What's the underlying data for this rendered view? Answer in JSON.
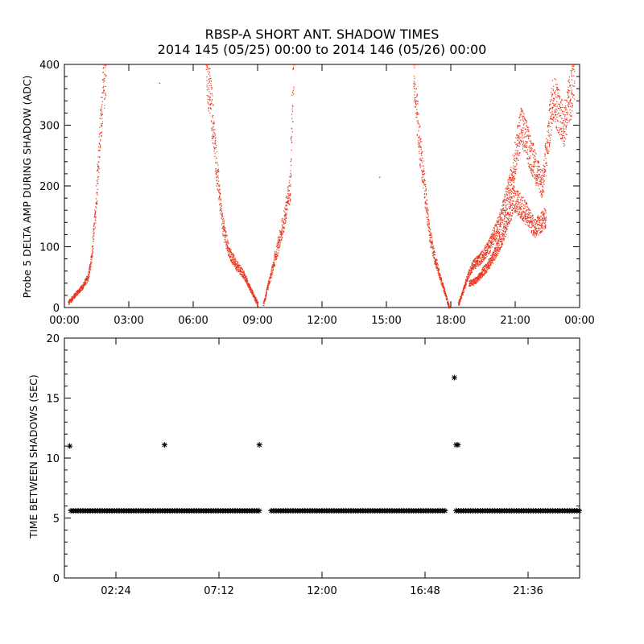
{
  "title_line1": "RBSP-A SHORT ANT. SHADOW TIMES",
  "title_line2": "2014 145 (05/25) 00:00 to 2014 146 (05/26) 00:00",
  "colors": {
    "points": "#e8341c",
    "markers": "#000000",
    "axes": "#000000"
  },
  "chart_data": [
    {
      "type": "scatter",
      "ylabel": "Probe 5 DELTA AMP DURING SHADOW (ADC)",
      "xlim": [
        "00:00",
        "24:00"
      ],
      "ylim": [
        0,
        400
      ],
      "xticks": [
        "00:00",
        "03:00",
        "06:00",
        "09:00",
        "12:00",
        "15:00",
        "18:00",
        "21:00",
        "00:00"
      ],
      "yticks": [
        "0",
        "100",
        "200",
        "300",
        "400"
      ],
      "series": [
        {
          "segments": [
            {
              "x": [
                "00:10",
                "00:30",
                "00:50",
                "01:05",
                "01:15",
                "01:25",
                "01:35",
                "01:45",
                "01:55"
              ],
              "y": [
                8,
                22,
                35,
                50,
                80,
                150,
                250,
                340,
                400
              ]
            },
            {
              "x": [
                "06:35",
                "06:50",
                "07:05",
                "07:20",
                "07:40",
                "08:00",
                "08:20",
                "08:40",
                "09:00"
              ],
              "y": [
                400,
                330,
                230,
                140,
                90,
                70,
                55,
                30,
                5
              ]
            },
            {
              "x": [
                "09:15",
                "09:30",
                "09:45",
                "10:00",
                "10:15",
                "10:30",
                "10:40"
              ],
              "y": [
                5,
                40,
                75,
                110,
                150,
                200,
                400
              ]
            },
            {
              "x": [
                "16:15",
                "16:30",
                "16:45",
                "17:00",
                "17:15",
                "17:30",
                "17:45",
                "17:55"
              ],
              "y": [
                400,
                280,
                200,
                120,
                80,
                50,
                20,
                0
              ]
            },
            {
              "x": [
                "18:20",
                "18:35",
                "18:45",
                "19:00",
                "19:20",
                "19:45",
                "20:15",
                "20:45",
                "21:15",
                "21:45",
                "22:15",
                "22:45",
                "23:15",
                "23:45"
              ],
              "y": [
                5,
                30,
                50,
                70,
                80,
                100,
                140,
                200,
                300,
                250,
                200,
                350,
                300,
                380
              ]
            },
            {
              "x": [
                "18:50",
                "19:10",
                "19:30",
                "19:55",
                "20:25",
                "20:55",
                "21:25",
                "21:55",
                "22:25"
              ],
              "y": [
                40,
                45,
                60,
                80,
                120,
                180,
                160,
                130,
                150
              ]
            }
          ]
        }
      ],
      "isolated": [
        {
          "x": "04:25",
          "y": 370
        },
        {
          "x": "14:40",
          "y": 215
        }
      ]
    },
    {
      "type": "scatter",
      "ylabel": "TIME BETWEEN SHADOWS (SEC)",
      "xlim": [
        "00:00",
        "24:00"
      ],
      "ylim": [
        0,
        20
      ],
      "xticks": [
        "02:24",
        "07:12",
        "12:00",
        "16:48",
        "21:36"
      ],
      "yticks": [
        "0",
        "5",
        "10",
        "15",
        "20"
      ],
      "baseline": {
        "y": 5.6,
        "ranges": [
          [
            "00:18",
            "09:08"
          ],
          [
            "09:38",
            "17:45"
          ],
          [
            "18:15",
            "24:00"
          ]
        ]
      },
      "points": [
        {
          "x": "00:15",
          "y": 11.0
        },
        {
          "x": "04:40",
          "y": 11.1
        },
        {
          "x": "09:05",
          "y": 11.1
        },
        {
          "x": "18:10",
          "y": 16.7
        },
        {
          "x": "18:15",
          "y": 11.1
        },
        {
          "x": "18:20",
          "y": 11.1
        }
      ]
    }
  ]
}
